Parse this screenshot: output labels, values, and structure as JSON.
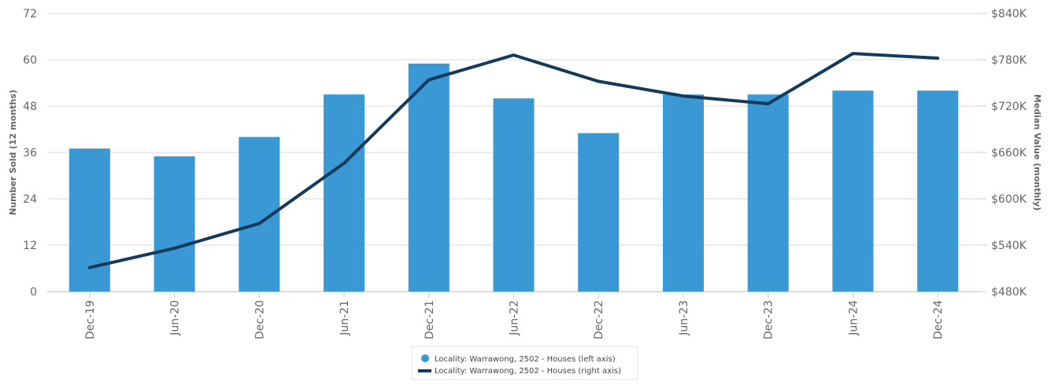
{
  "chart_data": {
    "type": "bar",
    "categories": [
      "Dec-19",
      "Jun-20",
      "Dec-20",
      "Jun-21",
      "Dec-21",
      "Jun-22",
      "Dec-22",
      "Jun-23",
      "Dec-23",
      "Jun-24",
      "Dec-24"
    ],
    "series": [
      {
        "name": "Locality: Warrawong, 2502 - Houses (left axis)",
        "type": "bar",
        "axis": "left",
        "color": "#3a98d4",
        "values": [
          37,
          35,
          40,
          51,
          59,
          50,
          41,
          51,
          51,
          52,
          52
        ]
      },
      {
        "name": "Locality: Warrawong, 2502 - Houses (right axis)",
        "type": "line",
        "axis": "right",
        "color": "#123a5c",
        "values": [
          511,
          536,
          568,
          646,
          754,
          786,
          752,
          733,
          723,
          788,
          782
        ]
      }
    ],
    "y_left": {
      "label": "Number Sold (12 months)",
      "min": 0,
      "max": 72,
      "ticks": [
        0,
        12,
        24,
        36,
        48,
        60,
        72
      ],
      "tick_labels": [
        "0",
        "12",
        "24",
        "36",
        "48",
        "60",
        "72"
      ]
    },
    "y_right": {
      "label": "Median Value (monthly)",
      "min": 480,
      "max": 840,
      "ticks": [
        480,
        540,
        600,
        660,
        720,
        780,
        840
      ],
      "tick_labels": [
        "$480K",
        "$540K",
        "$600K",
        "$660K",
        "$720K",
        "$780K",
        "$840K"
      ]
    },
    "grid": true,
    "legend_position": "bottom-center"
  }
}
